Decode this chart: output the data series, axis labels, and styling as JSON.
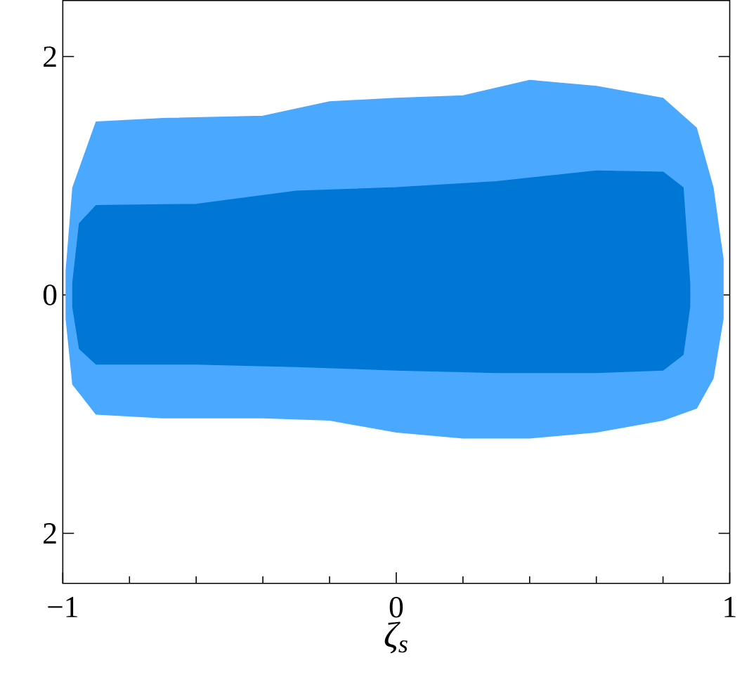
{
  "chart_data": {
    "type": "area",
    "xlabel": "ζ$_{s}$",
    "xlim": [
      -1,
      1
    ],
    "ylim": [
      -2.42,
      2.47
    ],
    "xticks": [
      {
        "value": -1,
        "label": "−1"
      },
      {
        "value": -0.8,
        "label": null
      },
      {
        "value": -0.6,
        "label": null
      },
      {
        "value": -0.4,
        "label": null
      },
      {
        "value": -0.2,
        "label": null
      },
      0,
      {
        "value": 0.2,
        "label": null
      },
      {
        "value": 0.4,
        "label": null
      },
      {
        "value": 0.6,
        "label": null
      },
      {
        "value": 0.8,
        "label": null
      },
      1
    ],
    "yticks": [
      {
        "value": -2,
        "label": "2"
      },
      0,
      2
    ],
    "grid": false,
    "series": [
      {
        "color": "#4aa8ff",
        "x": [
          -0.99,
          -0.97,
          -0.9,
          -0.7,
          -0.4,
          -0.2,
          0,
          0.2,
          0.4,
          0.6,
          0.8,
          0.9,
          0.95,
          0.98
        ],
        "values": [
          0.2,
          0.9,
          1.45,
          1.48,
          1.5,
          1.62,
          1.65,
          1.67,
          1.8,
          1.75,
          1.65,
          1.4,
          0.9,
          0.3
        ]
      },
      {
        "color": "#4aa8ff",
        "x": [
          -0.99,
          -0.97,
          -0.9,
          -0.7,
          -0.4,
          -0.2,
          0,
          0.2,
          0.4,
          0.6,
          0.8,
          0.9,
          0.95,
          0.98
        ],
        "values": [
          -0.2,
          -0.75,
          -1.0,
          -1.03,
          -1.03,
          -1.05,
          -1.15,
          -1.2,
          -1.2,
          -1.15,
          -1.05,
          -0.95,
          -0.7,
          -0.2
        ]
      },
      {
        "color": "#0077d4",
        "x": [
          -0.97,
          -0.95,
          -0.9,
          -0.6,
          -0.3,
          0,
          0.3,
          0.6,
          0.8,
          0.86,
          0.88
        ],
        "values": [
          0.1,
          0.6,
          0.75,
          0.76,
          0.87,
          0.9,
          0.95,
          1.04,
          1.03,
          0.9,
          0.1
        ]
      },
      {
        "color": "#0077d4",
        "x": [
          -0.97,
          -0.95,
          -0.9,
          -0.6,
          -0.3,
          0,
          0.3,
          0.6,
          0.8,
          0.86,
          0.88
        ],
        "values": [
          -0.1,
          -0.45,
          -0.58,
          -0.58,
          -0.6,
          -0.63,
          -0.65,
          -0.65,
          -0.63,
          -0.5,
          -0.1
        ]
      }
    ]
  }
}
